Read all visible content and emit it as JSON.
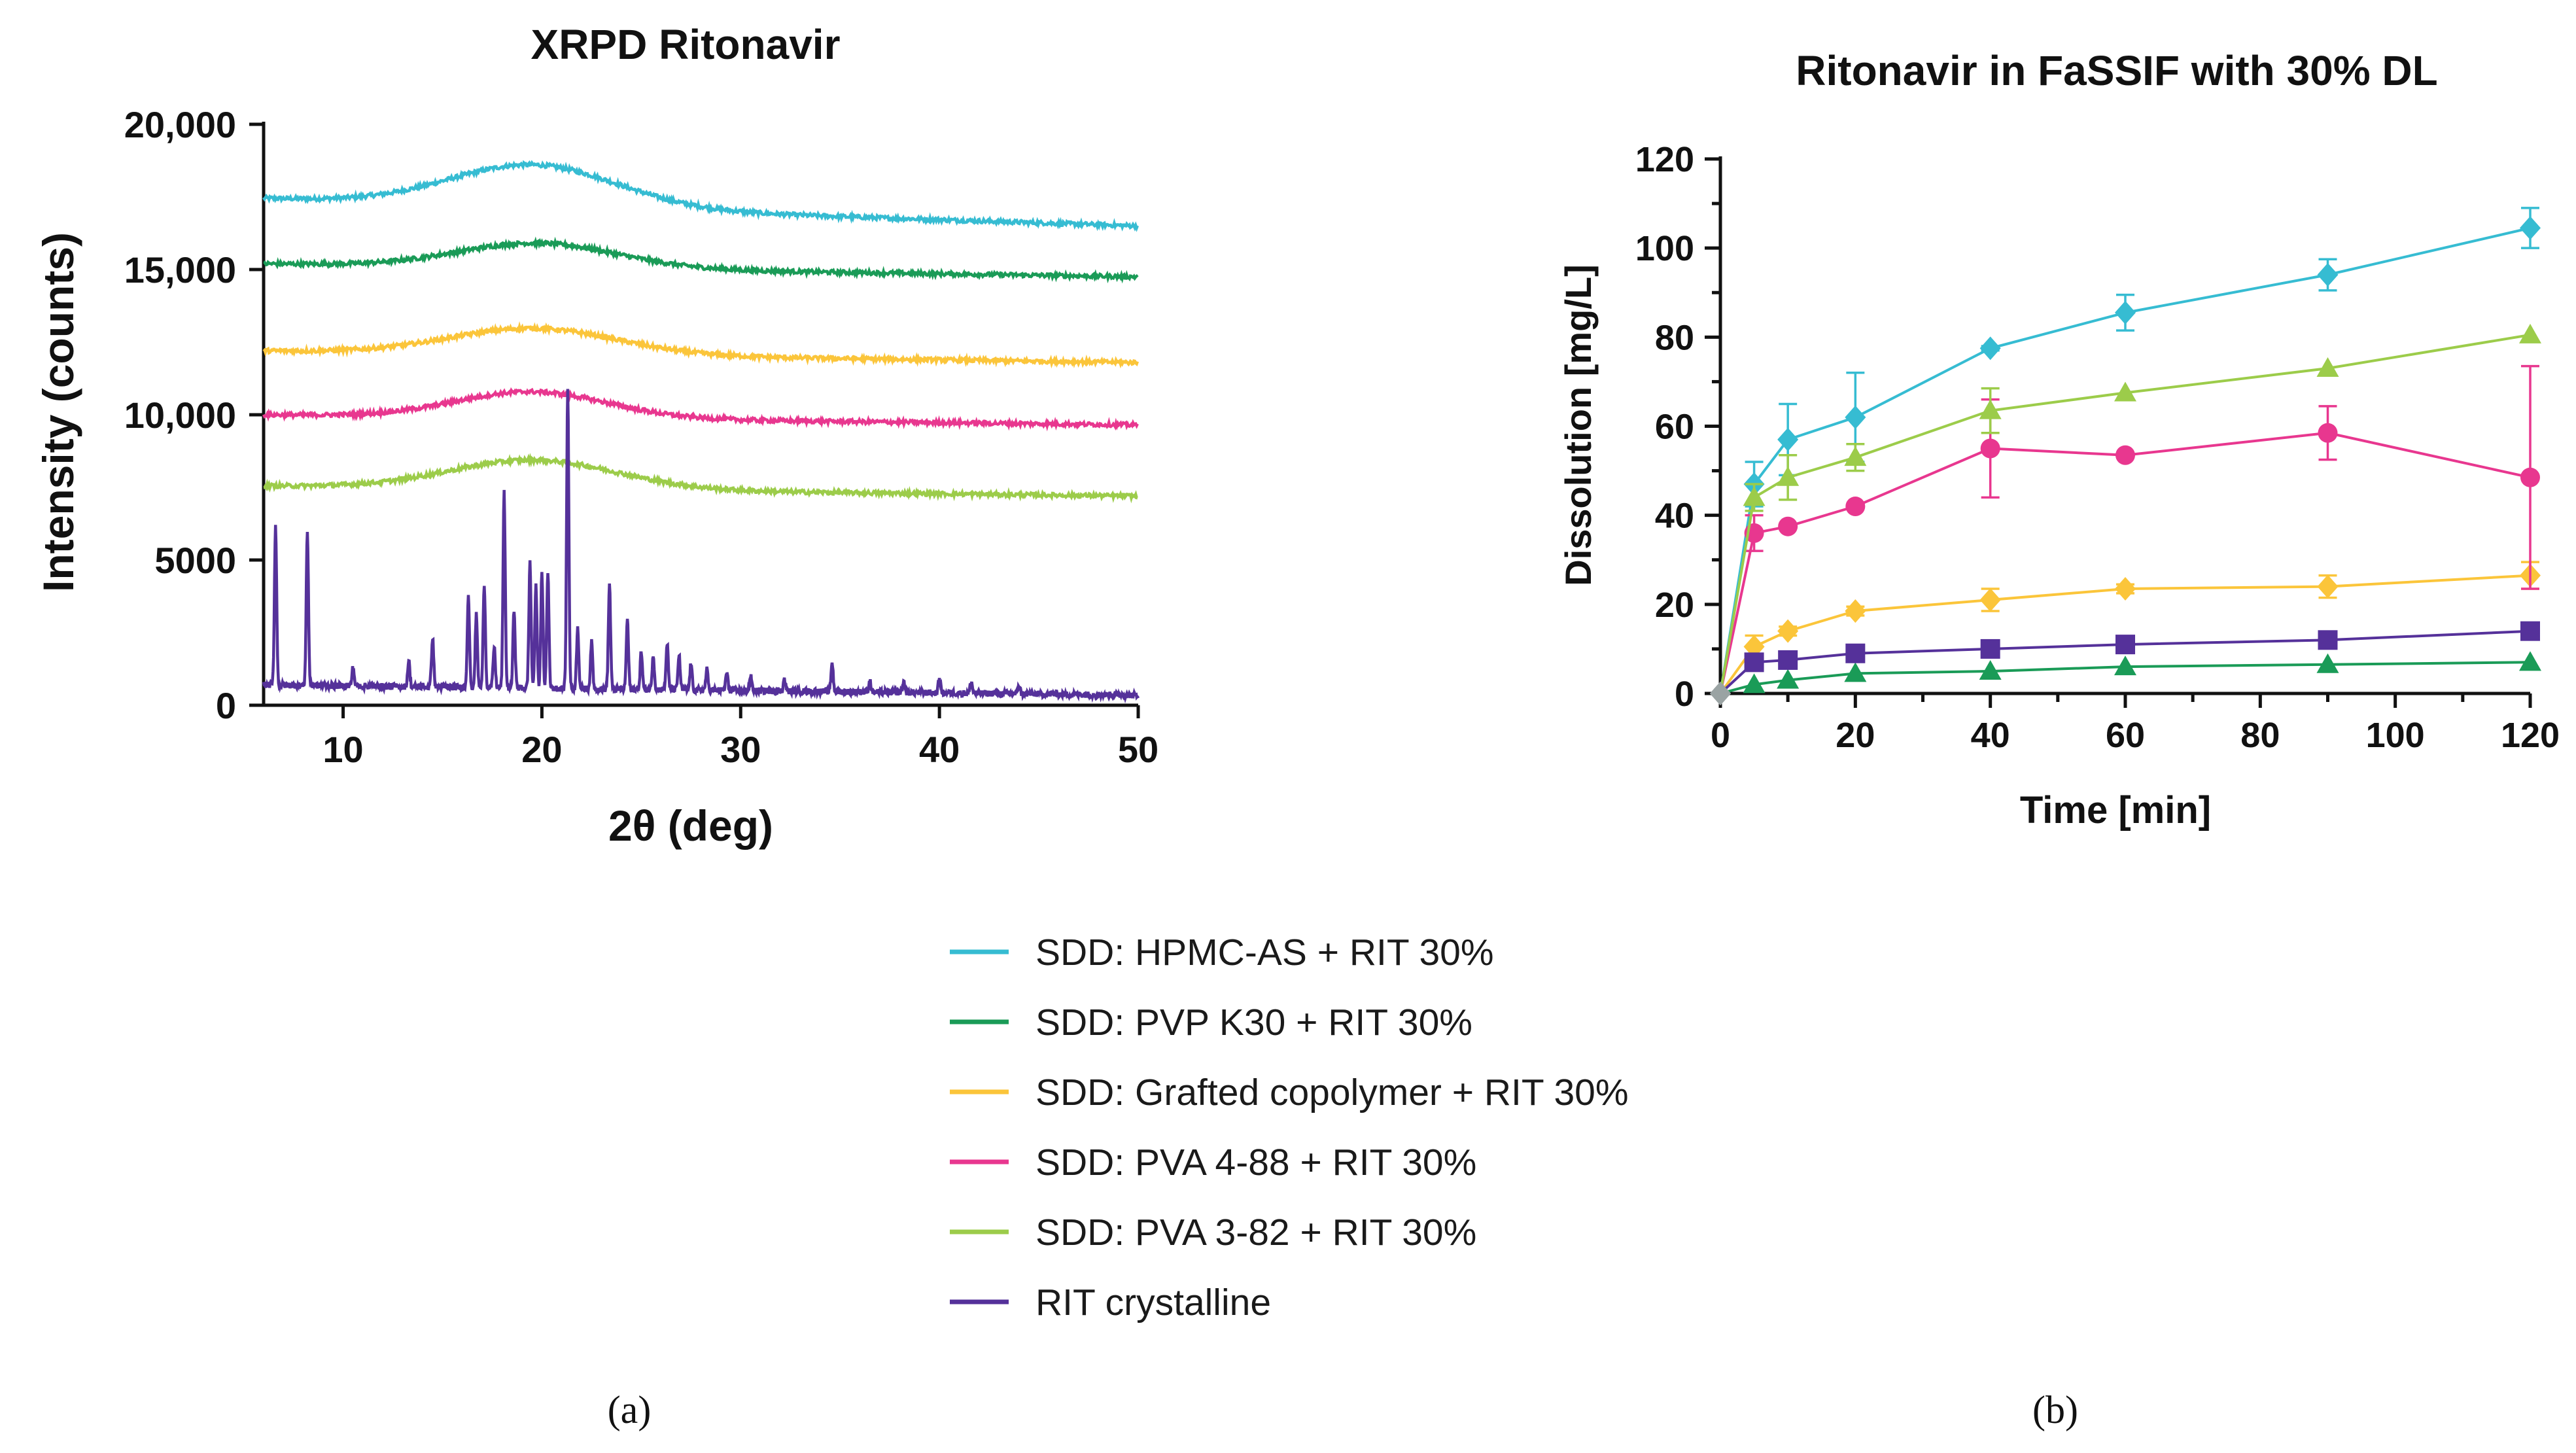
{
  "legend": [
    {
      "label": "SDD: HPMC-AS + RIT 30%",
      "color": "#36bcd2"
    },
    {
      "label": "SDD: PVP K30 + RIT 30%",
      "color": "#1a9b57"
    },
    {
      "label": "SDD: Grafted copolymer + RIT 30%",
      "color": "#fbc53a"
    },
    {
      "label": "SDD: PVA 4-88 + RIT 30%",
      "color": "#e8378f"
    },
    {
      "label": "SDD: PVA 3-82 + RIT 30%",
      "color": "#9ccc4a"
    },
    {
      "label": "RIT crystalline",
      "color": "#55319a"
    }
  ],
  "captions": {
    "a": "(a)",
    "b": "(b)"
  },
  "chart_data": [
    {
      "type": "line",
      "title": "XRPD Ritonavir",
      "xlabel": "2θ (deg)",
      "ylabel": "Intensity (counts)",
      "xlim": [
        6,
        50
      ],
      "ylim": [
        0,
        20000
      ],
      "xticks": [
        10,
        20,
        30,
        40,
        50
      ],
      "xtick_labels": [
        "10",
        "20",
        "30",
        "40",
        "50"
      ],
      "yticks": [
        0,
        5000,
        10000,
        15000,
        20000
      ],
      "ytick_labels": [
        "0",
        "5000",
        "10,000",
        "15,000",
        "20,000"
      ],
      "halo_series": [
        {
          "name": "SDD: HPMC-AS + RIT 30%",
          "color": "#36bcd2",
          "baseline_start": 17450,
          "baseline_end": 16500,
          "halo_center": 19.6,
          "halo_height": 1450,
          "halo_width": 4.2
        },
        {
          "name": "SDD: PVP K30 + RIT 30%",
          "color": "#1a9b57",
          "baseline_start": 15200,
          "baseline_end": 14750,
          "halo_center": 19.8,
          "halo_height": 850,
          "halo_width": 4.0
        },
        {
          "name": "SDD: Grafted copolymer + RIT 30%",
          "color": "#fbc53a",
          "baseline_start": 12200,
          "baseline_end": 11800,
          "halo_center": 19.6,
          "halo_height": 900,
          "halo_width": 4.2
        },
        {
          "name": "SDD: PVA 4-88 + RIT 30%",
          "color": "#e8378f",
          "baseline_start": 10000,
          "baseline_end": 9650,
          "halo_center": 19.5,
          "halo_height": 900,
          "halo_width": 3.8
        },
        {
          "name": "SDD: PVA 3-82 + RIT 30%",
          "color": "#9ccc4a",
          "baseline_start": 7550,
          "baseline_end": 7200,
          "halo_center": 19.6,
          "halo_height": 1000,
          "halo_width": 4.2
        }
      ],
      "crystalline_series": {
        "name": "RIT crystalline",
        "color": "#55319a",
        "baseline": 700,
        "peaks": [
          [
            6.6,
            5500
          ],
          [
            8.2,
            5300
          ],
          [
            10.5,
            650
          ],
          [
            13.3,
            900
          ],
          [
            14.5,
            1700
          ],
          [
            16.3,
            3200
          ],
          [
            16.7,
            2500
          ],
          [
            17.1,
            3600
          ],
          [
            17.6,
            1400
          ],
          [
            18.1,
            6700
          ],
          [
            18.6,
            2700
          ],
          [
            19.4,
            4300
          ],
          [
            19.7,
            3500
          ],
          [
            20.0,
            3900
          ],
          [
            20.3,
            4000
          ],
          [
            21.3,
            10300
          ],
          [
            21.8,
            2100
          ],
          [
            22.5,
            1600
          ],
          [
            23.4,
            3600
          ],
          [
            24.3,
            2400
          ],
          [
            25.0,
            1300
          ],
          [
            25.6,
            1200
          ],
          [
            26.3,
            1600
          ],
          [
            26.9,
            1200
          ],
          [
            27.5,
            900
          ],
          [
            28.3,
            700
          ],
          [
            29.3,
            600
          ],
          [
            30.5,
            500
          ],
          [
            32.2,
            400
          ],
          [
            34.6,
            1000
          ],
          [
            36.5,
            400
          ],
          [
            38.2,
            350
          ],
          [
            40.0,
            500
          ],
          [
            41.6,
            400
          ],
          [
            44.0,
            300
          ]
        ]
      }
    },
    {
      "type": "line",
      "title": "Ritonavir in FaSSIF with 30% DL",
      "xlabel": "Time [min]",
      "ylabel": "Dissolution [mg/L]",
      "xlim": [
        0,
        120
      ],
      "ylim": [
        0,
        120
      ],
      "xticks": [
        0,
        20,
        40,
        60,
        80,
        100,
        120
      ],
      "xtick_labels": [
        "0",
        "20",
        "40",
        "60",
        "80",
        "100",
        "120"
      ],
      "yticks": [
        0,
        20,
        40,
        60,
        80,
        100,
        120
      ],
      "ytick_labels": [
        "0",
        "20",
        "40",
        "60",
        "80",
        "100",
        "120"
      ],
      "x": [
        0,
        5,
        10,
        20,
        40,
        60,
        90,
        120
      ],
      "series": [
        {
          "name": "SDD: HPMC-AS + RIT 30%",
          "color": "#36bcd2",
          "marker": "diamond",
          "values": [
            0,
            47,
            57,
            62,
            77.5,
            85.5,
            94,
            104.5
          ],
          "errors": [
            0,
            5,
            8,
            10,
            0.5,
            4,
            3.5,
            4.5
          ]
        },
        {
          "name": "SDD: PVP K30 + RIT 30%",
          "color": "#1a9b57",
          "marker": "triangle",
          "values": [
            0,
            2,
            3,
            4.5,
            5,
            6,
            6.5,
            7
          ],
          "errors": [
            0,
            0,
            0,
            0,
            0,
            0,
            0,
            0
          ]
        },
        {
          "name": "SDD: Grafted copolymer + RIT 30%",
          "color": "#fbc53a",
          "marker": "diamond",
          "values": [
            0,
            10.5,
            14,
            18.5,
            21,
            23.5,
            24,
            26.5
          ],
          "errors": [
            0,
            2.5,
            1,
            1,
            2.5,
            1,
            2.5,
            3
          ]
        },
        {
          "name": "SDD: PVA 4-88 + RIT 30%",
          "color": "#e8378f",
          "marker": "circle",
          "values": [
            0,
            36,
            37.5,
            42,
            55,
            53.5,
            58.5,
            48.5
          ],
          "errors": [
            0,
            4,
            0,
            0,
            11,
            0,
            6,
            25
          ]
        },
        {
          "name": "SDD: PVA 3-82 + RIT 30%",
          "color": "#9ccc4a",
          "marker": "triangle",
          "values": [
            0,
            44,
            48.5,
            53,
            63.5,
            67.5,
            73,
            80.5
          ],
          "errors": [
            0,
            3,
            5,
            3,
            5,
            0,
            0,
            0
          ]
        },
        {
          "name": "RIT crystalline",
          "color": "#55319a",
          "marker": "square",
          "values": [
            0,
            7,
            7.5,
            9,
            10,
            11,
            12,
            14
          ],
          "errors": [
            0,
            0,
            0,
            0,
            0,
            0,
            0,
            0
          ]
        }
      ]
    }
  ]
}
